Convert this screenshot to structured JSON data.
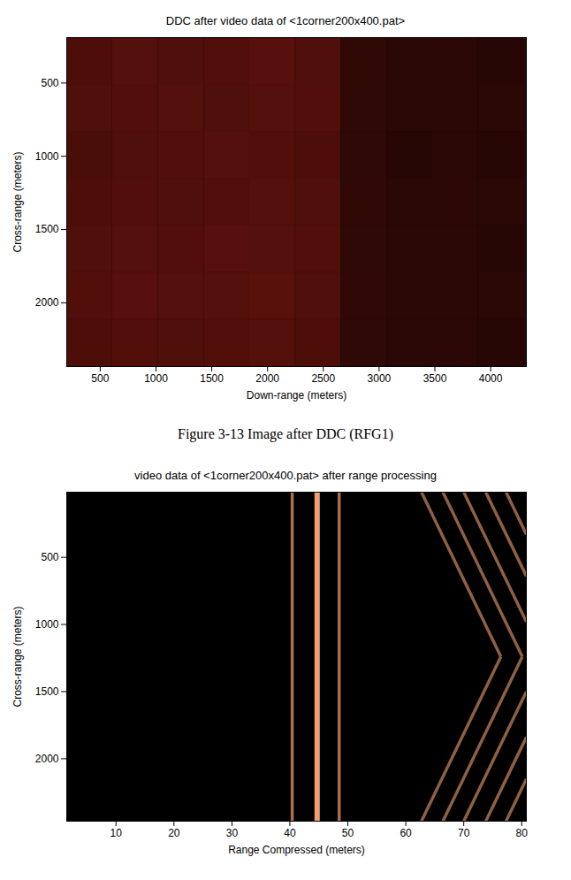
{
  "chart_data": [
    {
      "type": "heatmap",
      "title": "DDC after video data of <1corner200x400.pat>",
      "xlabel": "Down-range (meters)",
      "ylabel": "Cross-range (meters)",
      "caption": "Figure 3-13  Image after DDC (RFG1)",
      "xlim": [
        200,
        4320
      ],
      "xticks": [
        500,
        1000,
        1500,
        2000,
        2500,
        3000,
        3500,
        4000
      ],
      "ylim": [
        190,
        2435
      ],
      "yticks": [
        500,
        1000,
        1500,
        2000
      ],
      "color": "#ff3020",
      "zlim": [
        0,
        1
      ],
      "x_edges": [
        200,
        610,
        1020,
        1430,
        1840,
        2250,
        2660,
        3070,
        3480,
        3890,
        4320
      ],
      "y_edges": [
        190,
        510,
        830,
        1150,
        1470,
        1790,
        2110,
        2435
      ],
      "cells": [
        [
          0.3,
          0.33,
          0.31,
          0.32,
          0.34,
          0.31,
          0.19,
          0.16,
          0.17,
          0.15
        ],
        [
          0.31,
          0.32,
          0.33,
          0.31,
          0.33,
          0.32,
          0.18,
          0.17,
          0.16,
          0.16
        ],
        [
          0.29,
          0.31,
          0.32,
          0.33,
          0.32,
          0.3,
          0.18,
          0.15,
          0.16,
          0.15
        ],
        [
          0.3,
          0.32,
          0.31,
          0.32,
          0.33,
          0.31,
          0.19,
          0.16,
          0.17,
          0.16
        ],
        [
          0.31,
          0.33,
          0.32,
          0.34,
          0.33,
          0.32,
          0.18,
          0.16,
          0.16,
          0.15
        ],
        [
          0.32,
          0.34,
          0.33,
          0.33,
          0.35,
          0.31,
          0.19,
          0.17,
          0.16,
          0.16
        ],
        [
          0.3,
          0.32,
          0.31,
          0.32,
          0.33,
          0.3,
          0.18,
          0.16,
          0.17,
          0.15
        ]
      ]
    },
    {
      "type": "segments",
      "title": "video data of <1corner200x400.pat> after range processing",
      "xlabel": "Range Compressed (meters)",
      "ylabel": "Cross-range (meters)",
      "xlim": [
        1.5,
        80.8
      ],
      "xticks": [
        10,
        20,
        30,
        40,
        50,
        60,
        70,
        80
      ],
      "ylim": [
        15,
        2465
      ],
      "yticks": [
        500,
        1000,
        1500,
        2000
      ],
      "color": "#f0a070",
      "zlim": [
        0,
        1
      ],
      "segments": [
        {
          "x1": 40.4,
          "y1": 15,
          "x2": 40.4,
          "y2": 2465,
          "value": 0.7
        },
        {
          "x1": 44.7,
          "y1": 15,
          "x2": 44.7,
          "y2": 2465,
          "value": 1
        },
        {
          "x1": 48.5,
          "y1": 15,
          "x2": 48.5,
          "y2": 2465,
          "value": 0.7
        },
        {
          "x1": 62.7,
          "y1": 15,
          "x2": 76.4,
          "y2": 1240,
          "value": 0.6
        },
        {
          "x1": 66.4,
          "y1": 15,
          "x2": 80.1,
          "y2": 1240,
          "value": 0.6
        },
        {
          "x1": 70,
          "y1": 15,
          "x2": 80.8,
          "y2": 980,
          "value": 0.6
        },
        {
          "x1": 73.8,
          "y1": 15,
          "x2": 80.8,
          "y2": 640,
          "value": 0.6
        },
        {
          "x1": 77.3,
          "y1": 15,
          "x2": 80.8,
          "y2": 330,
          "value": 0.6
        },
        {
          "x1": 62.7,
          "y1": 2465,
          "x2": 76.4,
          "y2": 1240,
          "value": 0.6
        },
        {
          "x1": 66.4,
          "y1": 2465,
          "x2": 80.1,
          "y2": 1240,
          "value": 0.6
        },
        {
          "x1": 70,
          "y1": 2465,
          "x2": 80.8,
          "y2": 1500,
          "value": 0.6
        },
        {
          "x1": 73.8,
          "y1": 2465,
          "x2": 80.8,
          "y2": 1840,
          "value": 0.6
        },
        {
          "x1": 77.3,
          "y1": 2465,
          "x2": 80.8,
          "y2": 2150,
          "value": 0.6
        }
      ]
    }
  ]
}
